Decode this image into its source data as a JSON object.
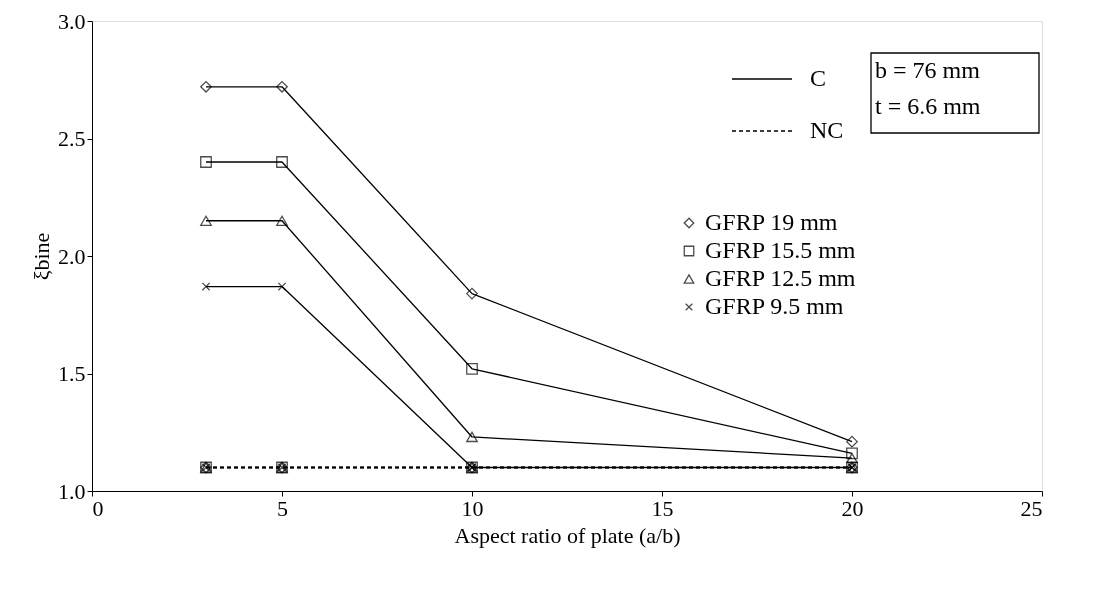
{
  "chart_data": {
    "type": "line",
    "xlabel": "Aspect ratio of plate (a/b)",
    "ylabel": "ξbine",
    "x": [
      3,
      5,
      10,
      20
    ],
    "xlim": [
      0,
      25
    ],
    "xticks": [
      0,
      5,
      10,
      15,
      20,
      25
    ],
    "ylim": [
      1.0,
      3.0
    ],
    "yticks": [
      {
        "value": 1.0,
        "label": "1.0"
      },
      {
        "value": 1.5,
        "label": "1.5"
      },
      {
        "value": 2.0,
        "label": "2.0"
      },
      {
        "value": 2.5,
        "label": "2.5"
      },
      {
        "value": 3.0,
        "label": "3.0"
      }
    ],
    "grid": false,
    "legend": "right",
    "annotations": [
      "C",
      "NC",
      "b = 76 mm",
      "t = 6.6 mm"
    ],
    "series": [
      {
        "name": "GFRP 19 mm",
        "color": "#000000",
        "marker": "diamond",
        "line_style": "solid",
        "values": [
          2.72,
          2.72,
          1.84,
          1.21
        ]
      },
      {
        "name": "GFRP 15.5 mm",
        "color": "#000000",
        "marker": "square",
        "line_style": "solid",
        "values": [
          2.4,
          2.4,
          1.52,
          1.16
        ]
      },
      {
        "name": "GFRP 12.5 mm",
        "color": "#000000",
        "marker": "triangle",
        "line_style": "solid",
        "values": [
          2.15,
          2.15,
          1.23,
          1.14
        ]
      },
      {
        "name": "GFRP 9.5 mm",
        "color": "#000000",
        "marker": "cross",
        "line_style": "solid",
        "values": [
          1.87,
          1.87,
          1.1,
          1.1
        ]
      },
      {
        "color": "#000000",
        "marker": "diamond",
        "line_style": "dashed",
        "values": [
          1.1,
          1.1,
          1.1,
          1.1
        ]
      },
      {
        "color": "#000000",
        "marker": "square",
        "line_style": "dashed",
        "values": [
          1.1,
          1.1,
          1.1,
          1.1
        ]
      },
      {
        "color": "#000000",
        "marker": "triangle",
        "line_style": "dashed",
        "values": [
          1.1,
          1.1,
          1.1,
          1.1
        ]
      },
      {
        "color": "#000000",
        "marker": "cross",
        "line_style": "dashed",
        "values": [
          1.1,
          1.1,
          1.1,
          1.1
        ]
      }
    ]
  }
}
